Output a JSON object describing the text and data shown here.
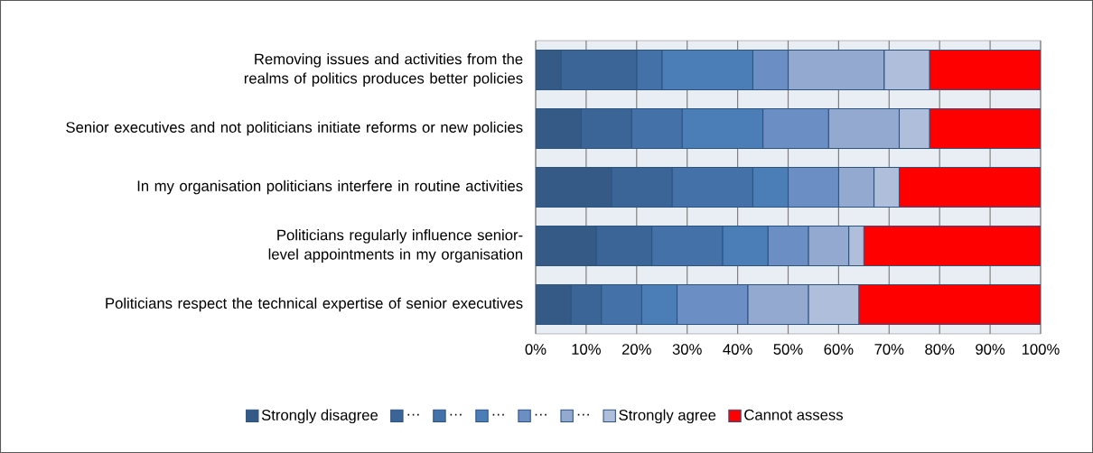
{
  "chart_data": {
    "type": "bar",
    "orientation": "horizontal",
    "stacked": true,
    "categories": [
      "Removing issues and activities from the realms of politics produces better policies",
      "Senior executives and not politicians initiate reforms or new policies",
      "In my organisation politicians interfere in routine activities",
      "Politicians regularly influence senior-level appointments in my organisation",
      "Politicians respect the technical expertise of senior executives"
    ],
    "series": [
      {
        "name": "Strongly disagree",
        "color": "#355a86",
        "values": [
          5,
          9,
          15,
          12,
          7
        ]
      },
      {
        "name": "…",
        "color": "#3c6597",
        "values": [
          15,
          10,
          12,
          11,
          6
        ]
      },
      {
        "name": "…",
        "color": "#4472a8",
        "values": [
          5,
          10,
          16,
          14,
          8
        ]
      },
      {
        "name": "…",
        "color": "#4b7db7",
        "values": [
          18,
          16,
          7,
          9,
          7
        ]
      },
      {
        "name": "…",
        "color": "#6b8fc4",
        "values": [
          7,
          13,
          10,
          8,
          14
        ]
      },
      {
        "name": "…",
        "color": "#94a9d0",
        "values": [
          19,
          14,
          7,
          8,
          12
        ]
      },
      {
        "name": "Strongly agree",
        "color": "#aebedb",
        "values": [
          9,
          6,
          5,
          3,
          10
        ]
      },
      {
        "name": "Cannot assess",
        "color": "#ff0000",
        "values": [
          22,
          22,
          28,
          35,
          36
        ]
      }
    ],
    "xlim": [
      0,
      100
    ],
    "xticks": [
      {
        "value": 0,
        "label": "0%"
      },
      {
        "value": 10,
        "label": "10%"
      },
      {
        "value": 20,
        "label": "20%"
      },
      {
        "value": 30,
        "label": "30%"
      },
      {
        "value": 40,
        "label": "40%"
      },
      {
        "value": 50,
        "label": "50%"
      },
      {
        "value": 60,
        "label": "60%"
      },
      {
        "value": 70,
        "label": "70%"
      },
      {
        "value": 80,
        "label": "80%"
      },
      {
        "value": 90,
        "label": "90%"
      },
      {
        "value": 100,
        "label": "100%"
      }
    ],
    "grid": "x",
    "legend": "bottom"
  }
}
